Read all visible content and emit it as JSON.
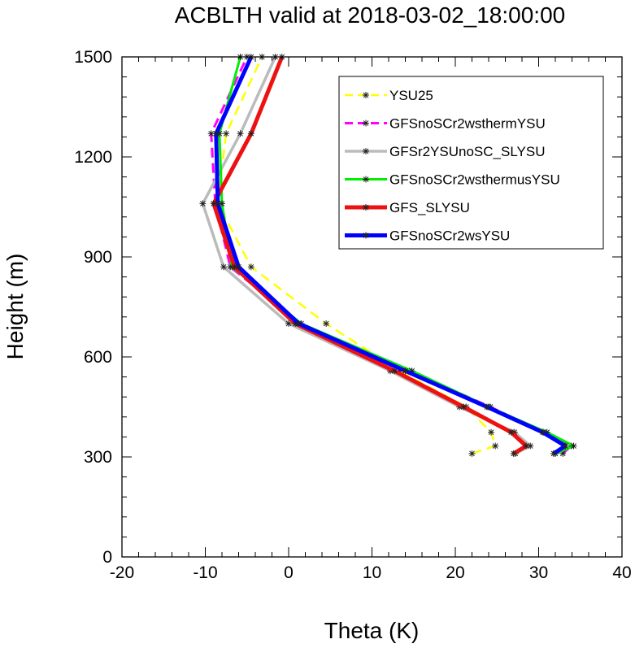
{
  "chart_data": {
    "type": "line",
    "title": "ACBLTH valid at 2018-03-02_18:00:00",
    "xlabel": "Theta (K)",
    "ylabel": "Height (m)",
    "xlim": [
      -20,
      40
    ],
    "ylim": [
      0,
      1500
    ],
    "xticks": [
      "-20",
      "-10",
      "0",
      "10",
      "20",
      "30",
      "40"
    ],
    "yticks": [
      "0",
      "300",
      "600",
      "900",
      "1200",
      "1500"
    ],
    "grid": false,
    "legend_position": "top-right",
    "series": [
      {
        "name": "YSU25",
        "color": "#ffff00",
        "dash": true,
        "points": [
          [
            22.0,
            310
          ],
          [
            24.8,
            333
          ],
          [
            24.3,
            374
          ],
          [
            21.3,
            450
          ],
          [
            13.3,
            558
          ],
          [
            4.5,
            700
          ],
          [
            -4.5,
            870
          ],
          [
            -8.5,
            1060
          ],
          [
            -7.5,
            1270
          ],
          [
            -3.2,
            1500
          ]
        ]
      },
      {
        "name": "GFSnoSCr2wsthermYSU",
        "color": "#ff00ff",
        "dash": true,
        "points": [
          [
            32.9,
            310
          ],
          [
            33.9,
            333
          ],
          [
            30.6,
            374
          ],
          [
            24.2,
            450
          ],
          [
            14.5,
            558
          ],
          [
            1.5,
            700
          ],
          [
            -7.0,
            870
          ],
          [
            -8.8,
            1060
          ],
          [
            -9.3,
            1270
          ],
          [
            -5.0,
            1500
          ]
        ]
      },
      {
        "name": "GFSr2YSUnoSC_SLYSU",
        "color": "#bbbbbb",
        "dash": false,
        "points": [
          [
            27.2,
            310
          ],
          [
            29.0,
            333
          ],
          [
            27.1,
            374
          ],
          [
            20.5,
            450
          ],
          [
            12.2,
            558
          ],
          [
            0.0,
            700
          ],
          [
            -7.8,
            870
          ],
          [
            -10.3,
            1060
          ],
          [
            -5.8,
            1270
          ],
          [
            -1.6,
            1500
          ]
        ]
      },
      {
        "name": "GFSnoSCr2wsthermusYSU",
        "color": "#00ee00",
        "dash": false,
        "points": [
          [
            32.0,
            310
          ],
          [
            34.2,
            333
          ],
          [
            31.0,
            374
          ],
          [
            24.0,
            450
          ],
          [
            14.8,
            558
          ],
          [
            1.5,
            700
          ],
          [
            -6.8,
            870
          ],
          [
            -8.0,
            1060
          ],
          [
            -8.3,
            1270
          ],
          [
            -5.8,
            1500
          ]
        ]
      },
      {
        "name": "GFS_SLYSU",
        "color": "#ee1111",
        "dash": false,
        "points": [
          [
            27.0,
            310
          ],
          [
            28.5,
            333
          ],
          [
            26.7,
            374
          ],
          [
            21.0,
            450
          ],
          [
            12.7,
            558
          ],
          [
            0.8,
            700
          ],
          [
            -6.5,
            870
          ],
          [
            -9.0,
            1060
          ],
          [
            -4.5,
            1270
          ],
          [
            -0.8,
            1500
          ]
        ]
      },
      {
        "name": "GFSnoSCr2wsYSU",
        "color": "#0000ff",
        "dash": false,
        "points": [
          [
            31.8,
            310
          ],
          [
            33.2,
            333
          ],
          [
            30.5,
            374
          ],
          [
            23.8,
            450
          ],
          [
            14.0,
            558
          ],
          [
            1.2,
            700
          ],
          [
            -6.0,
            870
          ],
          [
            -8.5,
            1060
          ],
          [
            -8.7,
            1270
          ],
          [
            -4.5,
            1500
          ]
        ]
      }
    ]
  }
}
